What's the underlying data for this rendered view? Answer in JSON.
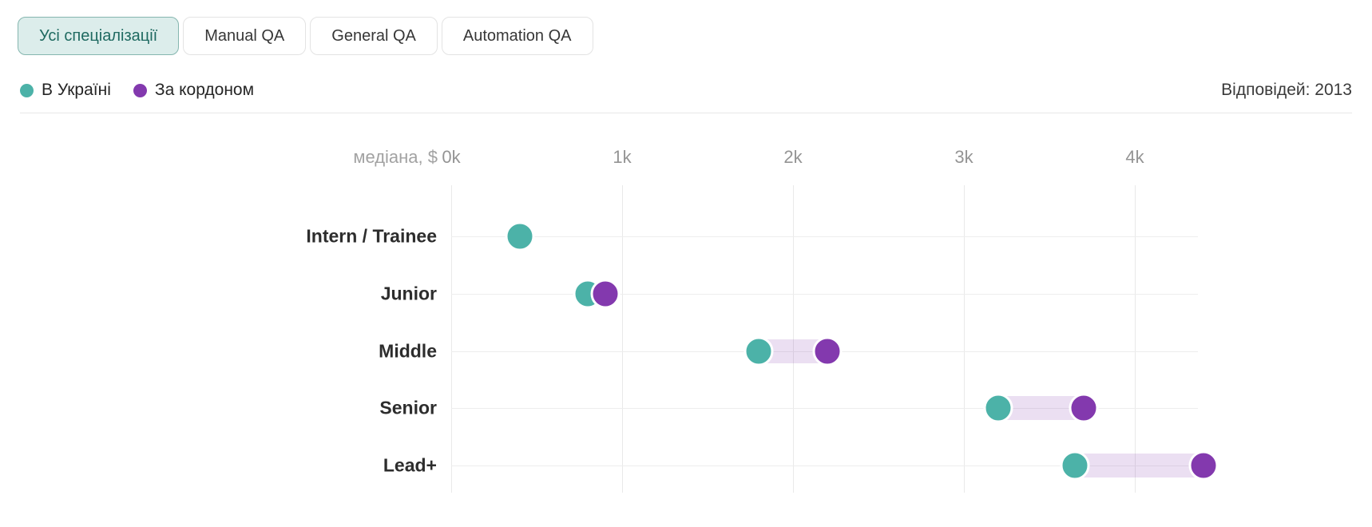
{
  "tabs": {
    "items": [
      {
        "label": "Усі спеціалізації",
        "active": true
      },
      {
        "label": "Manual QA",
        "active": false
      },
      {
        "label": "General QA",
        "active": false
      },
      {
        "label": "Automation QA",
        "active": false
      }
    ]
  },
  "legend": {
    "items": [
      {
        "label": "В Україні",
        "color": "#4CB2A8"
      },
      {
        "label": "За кордоном",
        "color": "#8339AE"
      }
    ]
  },
  "responses_label": "Відповідей: 2013",
  "colors": {
    "ukraine_dot": "#4CB2A8",
    "abroad_dot": "#8339AE",
    "range_band": "rgba(131,57,174,0.16)",
    "grid_vertical": "#e9e9e9",
    "grid_horizontal": "#ededed",
    "axis_text": "#949494",
    "row_label_text": "#2d2d2d",
    "active_tab_bg": "#dcedeb",
    "active_tab_border": "#85b6af",
    "active_tab_text": "#1f6a61"
  },
  "chart_data": {
    "type": "scatter",
    "subtype": "dumbbell-dot-plot",
    "title": "",
    "xlabel": "медіана, $",
    "ylabel": "",
    "x_ticks": [
      "0k",
      "1k",
      "2k",
      "3k",
      "4k"
    ],
    "x_tick_values": [
      0,
      1000,
      2000,
      3000,
      4000
    ],
    "xlim": [
      0,
      4400
    ],
    "grid": true,
    "legend_position": "top-left",
    "categories": [
      "Intern / Trainee",
      "Junior",
      "Middle",
      "Senior",
      "Lead+"
    ],
    "series": [
      {
        "name": "В Україні",
        "color": "#4CB2A8",
        "values": [
          400,
          800,
          1800,
          3200,
          3650
        ]
      },
      {
        "name": "За кордоном",
        "color": "#8339AE",
        "values": [
          null,
          900,
          2200,
          3700,
          4400
        ]
      }
    ]
  }
}
